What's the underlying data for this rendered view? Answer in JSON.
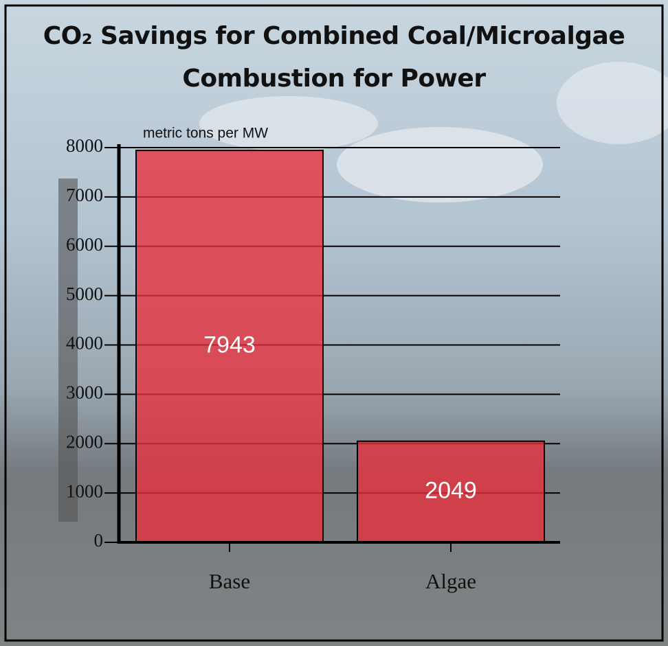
{
  "chart_data": {
    "type": "bar",
    "title": "CO₂ Savings for Combined Coal/Microalgae Combustion for Power",
    "y_label": "metric tons per MW",
    "categories": [
      "Base",
      "Algae"
    ],
    "values": [
      7943,
      2049
    ],
    "color": "#e8303c",
    "ylim": [
      0,
      8000
    ],
    "yticks": [
      0,
      1000,
      2000,
      3000,
      4000,
      5000,
      6000,
      7000,
      8000
    ],
    "grid": true
  }
}
